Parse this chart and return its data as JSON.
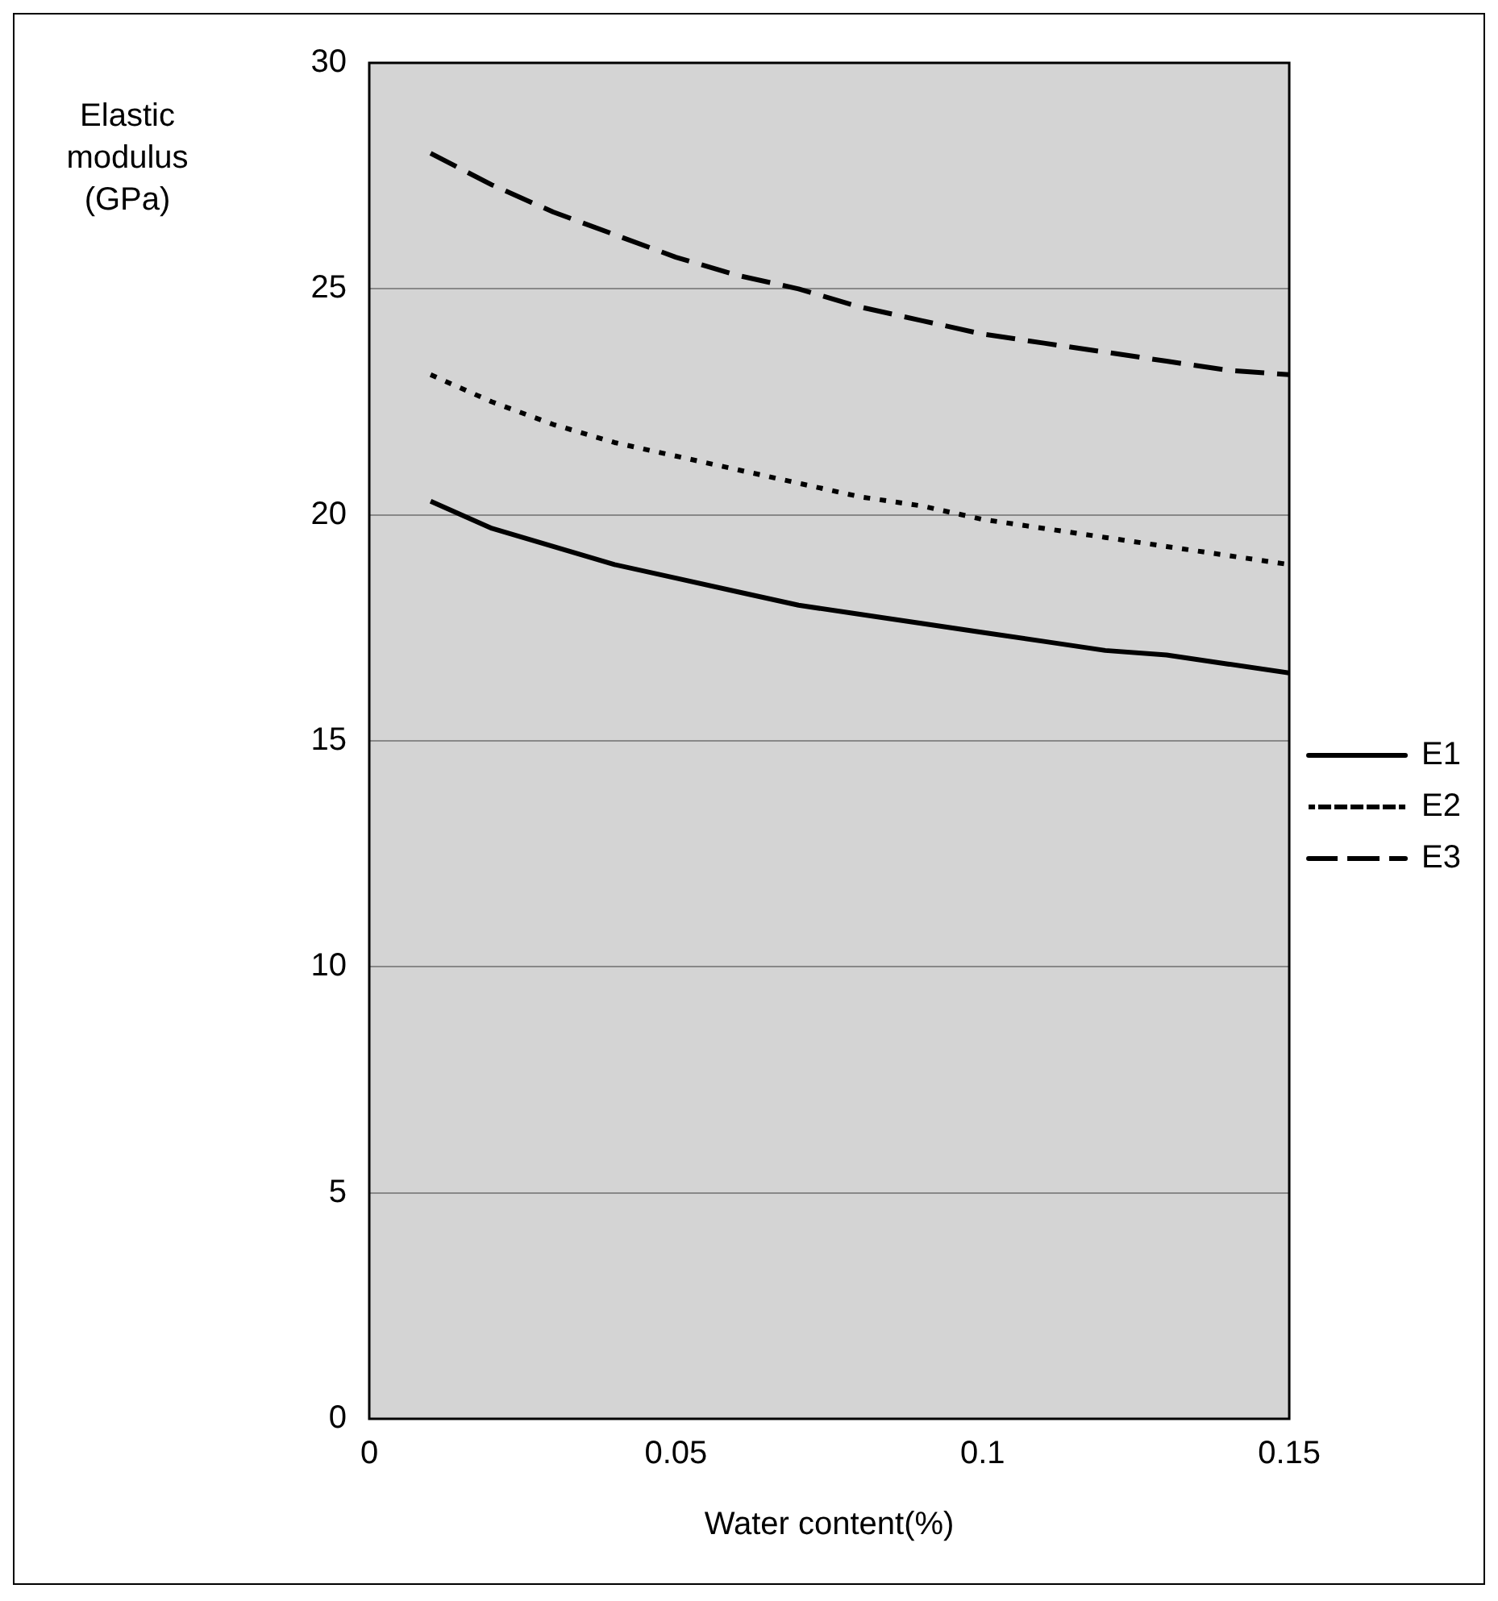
{
  "chart_data": {
    "type": "line",
    "xlabel": "Water content(%)",
    "ylabel": "Elastic modulus (GPa)",
    "x": [
      0.01,
      0.02,
      0.03,
      0.04,
      0.05,
      0.06,
      0.07,
      0.08,
      0.09,
      0.1,
      0.11,
      0.12,
      0.13,
      0.14,
      0.15
    ],
    "series": [
      {
        "name": "E1",
        "color": "#000000",
        "line_style": "solid",
        "values": [
          20.3,
          19.7,
          19.3,
          18.9,
          18.6,
          18.3,
          18.0,
          17.8,
          17.6,
          17.4,
          17.2,
          17.0,
          16.9,
          16.7,
          16.5
        ]
      },
      {
        "name": "E2",
        "color": "#000000",
        "line_style": "dotted",
        "values": [
          23.1,
          22.5,
          22.0,
          21.6,
          21.3,
          21.0,
          20.7,
          20.4,
          20.2,
          19.9,
          19.7,
          19.5,
          19.3,
          19.1,
          18.9
        ]
      },
      {
        "name": "E3",
        "color": "#000000",
        "line_style": "dashed",
        "values": [
          28.0,
          27.3,
          26.7,
          26.2,
          25.7,
          25.3,
          25.0,
          24.6,
          24.3,
          24.0,
          23.8,
          23.6,
          23.4,
          23.2,
          23.1
        ]
      }
    ],
    "xlim": [
      0,
      0.15
    ],
    "xticks": [
      0,
      0.05,
      0.1,
      0.15
    ],
    "ylim": [
      0,
      30
    ],
    "yticks": [
      0,
      5,
      10,
      15,
      20,
      25,
      30
    ],
    "grid": "y",
    "legend": "right",
    "marker": "none"
  }
}
